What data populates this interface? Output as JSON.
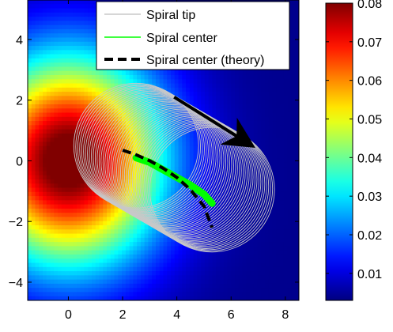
{
  "chart_data": [
    {
      "type": "heatmap",
      "xlim": [
        -1.5,
        8.5
      ],
      "ylim": [
        -4.6,
        5.3
      ],
      "xticks": [
        0,
        2,
        4,
        6,
        8
      ],
      "xtick_labels": [
        "0",
        "2",
        "4",
        "6",
        "8"
      ],
      "yticks": [
        -4,
        -2,
        0,
        2,
        4
      ],
      "ytick_labels": [
        "−4",
        "−2",
        "0",
        "2",
        "4"
      ],
      "field": {
        "colormap": "jet",
        "peak_x": 0,
        "peak_y": 0,
        "peak_value": 0.085,
        "background_value": 0.004
      },
      "colorbar": {
        "range": [
          0.003,
          0.08
        ],
        "ticks": [
          0.01,
          0.02,
          0.03,
          0.04,
          0.05,
          0.06,
          0.07,
          0.08
        ],
        "tick_labels": [
          "0.01",
          "0.02",
          "0.03",
          "0.04",
          "0.05",
          "0.06",
          "0.07",
          "0.08"
        ]
      },
      "legend": {
        "position": "top-right",
        "entries": [
          {
            "label": "Spiral tip",
            "color": "#c8c8c8",
            "style": "solid"
          },
          {
            "label": "Spiral center",
            "color": "#00ff00",
            "style": "solid"
          },
          {
            "label": "Spiral center (theory)",
            "color": "#000000",
            "style": "dashed"
          }
        ]
      },
      "series": [
        {
          "name": "Spiral tip",
          "type": "circle-sweep",
          "color": "#c8c8c8",
          "radius": 2.3,
          "center_start": [
            2.5,
            0.5
          ],
          "center_end": [
            5.3,
            -0.95
          ],
          "circles": 40
        },
        {
          "name": "Spiral center",
          "type": "line",
          "color": "#00ff00",
          "x": [
            2.5,
            3.0,
            3.5,
            4.0,
            4.5,
            5.0,
            5.3
          ],
          "y": [
            0.1,
            -0.05,
            -0.3,
            -0.55,
            -0.8,
            -1.1,
            -1.4
          ]
        },
        {
          "name": "Spiral center (theory)",
          "type": "line",
          "color": "#000000",
          "dashed": true,
          "x": [
            2.0,
            2.5,
            3.0,
            3.5,
            4.0,
            4.5,
            5.0,
            5.3
          ],
          "y": [
            0.35,
            0.2,
            0.0,
            -0.25,
            -0.55,
            -0.95,
            -1.5,
            -2.2
          ]
        }
      ],
      "arrow": {
        "color": "#000000",
        "from": [
          3.9,
          2.1
        ],
        "to": [
          6.5,
          0.65
        ]
      }
    }
  ]
}
